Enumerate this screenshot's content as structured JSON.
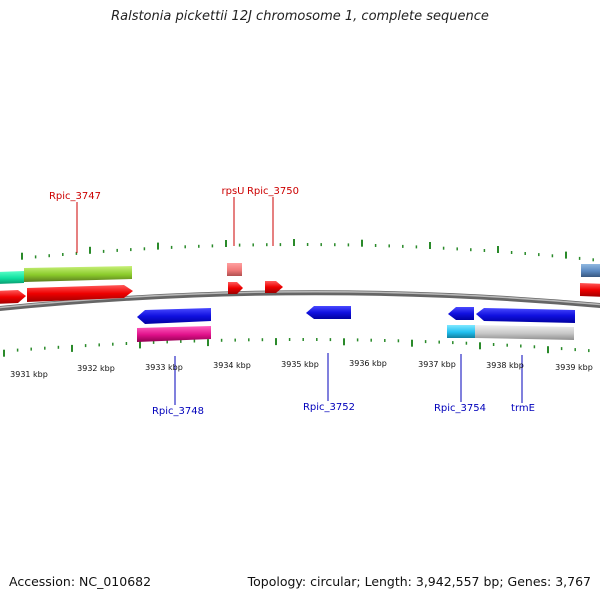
{
  "title": "Ralstonia pickettii 12J chromosome 1, complete sequence",
  "footer": {
    "accession": "Accession: NC_010682",
    "info": "Topology: circular; Length: 3,942,557 bp; Genes: 3,767"
  },
  "colors": {
    "backbone": "#888888",
    "tick": "#2a8a2a",
    "label_top": "#cc0000",
    "label_bottom": "#0000bb"
  },
  "kbp_labels": [
    "3931 kbp",
    "3932 kbp",
    "3933 kbp",
    "3934 kbp",
    "3935 kbp",
    "3936 kbp",
    "3937 kbp",
    "3938 kbp",
    "3939 kbp"
  ],
  "gene_labels": {
    "top": [
      "Rpic_3747",
      "rpsU",
      "Rpic_3750"
    ],
    "bottom": [
      "Rpic_3748",
      "Rpic_3752",
      "Rpic_3754",
      "trmE"
    ]
  }
}
